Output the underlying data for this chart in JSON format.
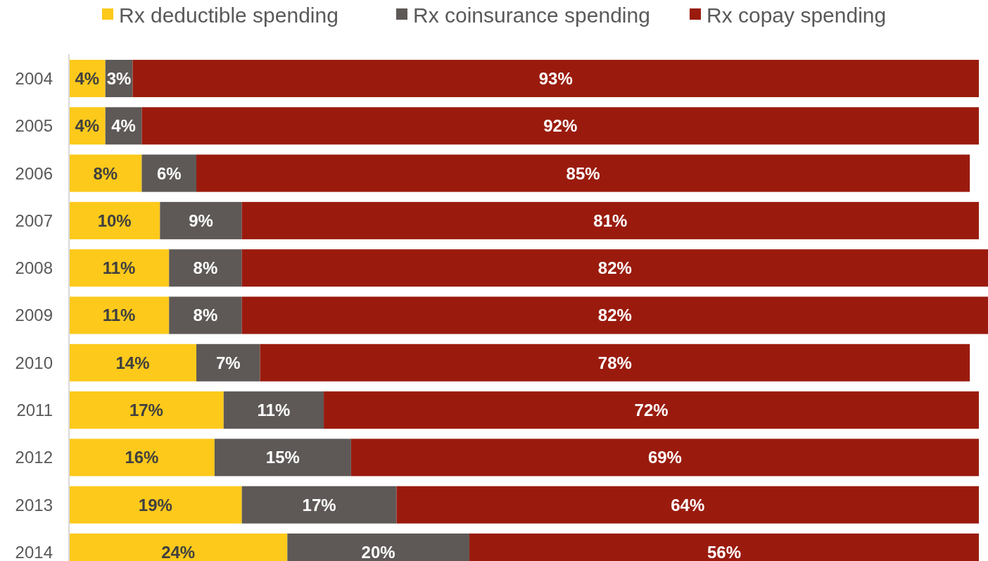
{
  "chart_data": {
    "type": "bar",
    "orientation": "horizontal",
    "stacked": true,
    "legend": "top",
    "tick_labels": "y",
    "categories": [
      "2004",
      "2005",
      "2006",
      "2007",
      "2008",
      "2009",
      "2010",
      "2011",
      "2012",
      "2013",
      "2014"
    ],
    "series": [
      {
        "name": "Rx deductible spending",
        "color": "#fdc91b",
        "values": [
          4,
          4,
          8,
          10,
          11,
          11,
          14,
          17,
          16,
          19,
          24
        ],
        "value_labels": [
          "4%",
          "4%",
          "8%",
          "10%",
          "11%",
          "11%",
          "14%",
          "17%",
          "16%",
          "19%",
          "24%"
        ]
      },
      {
        "name": "Rx coinsurance spending",
        "color": "#5e5957",
        "values": [
          3,
          4,
          6,
          9,
          8,
          8,
          7,
          11,
          15,
          17,
          20
        ],
        "value_labels": [
          "3%",
          "4%",
          "6%",
          "9%",
          "8%",
          "8%",
          "7%",
          "11%",
          "15%",
          "17%",
          "20%"
        ]
      },
      {
        "name": "Rx copay spending",
        "color": "#9a1b0e",
        "values": [
          93,
          92,
          85,
          81,
          82,
          82,
          78,
          72,
          69,
          64,
          56
        ],
        "value_labels": [
          "93%",
          "92%",
          "85%",
          "81%",
          "82%",
          "82%",
          "78%",
          "72%",
          "69%",
          "64%",
          "56%"
        ]
      }
    ]
  }
}
